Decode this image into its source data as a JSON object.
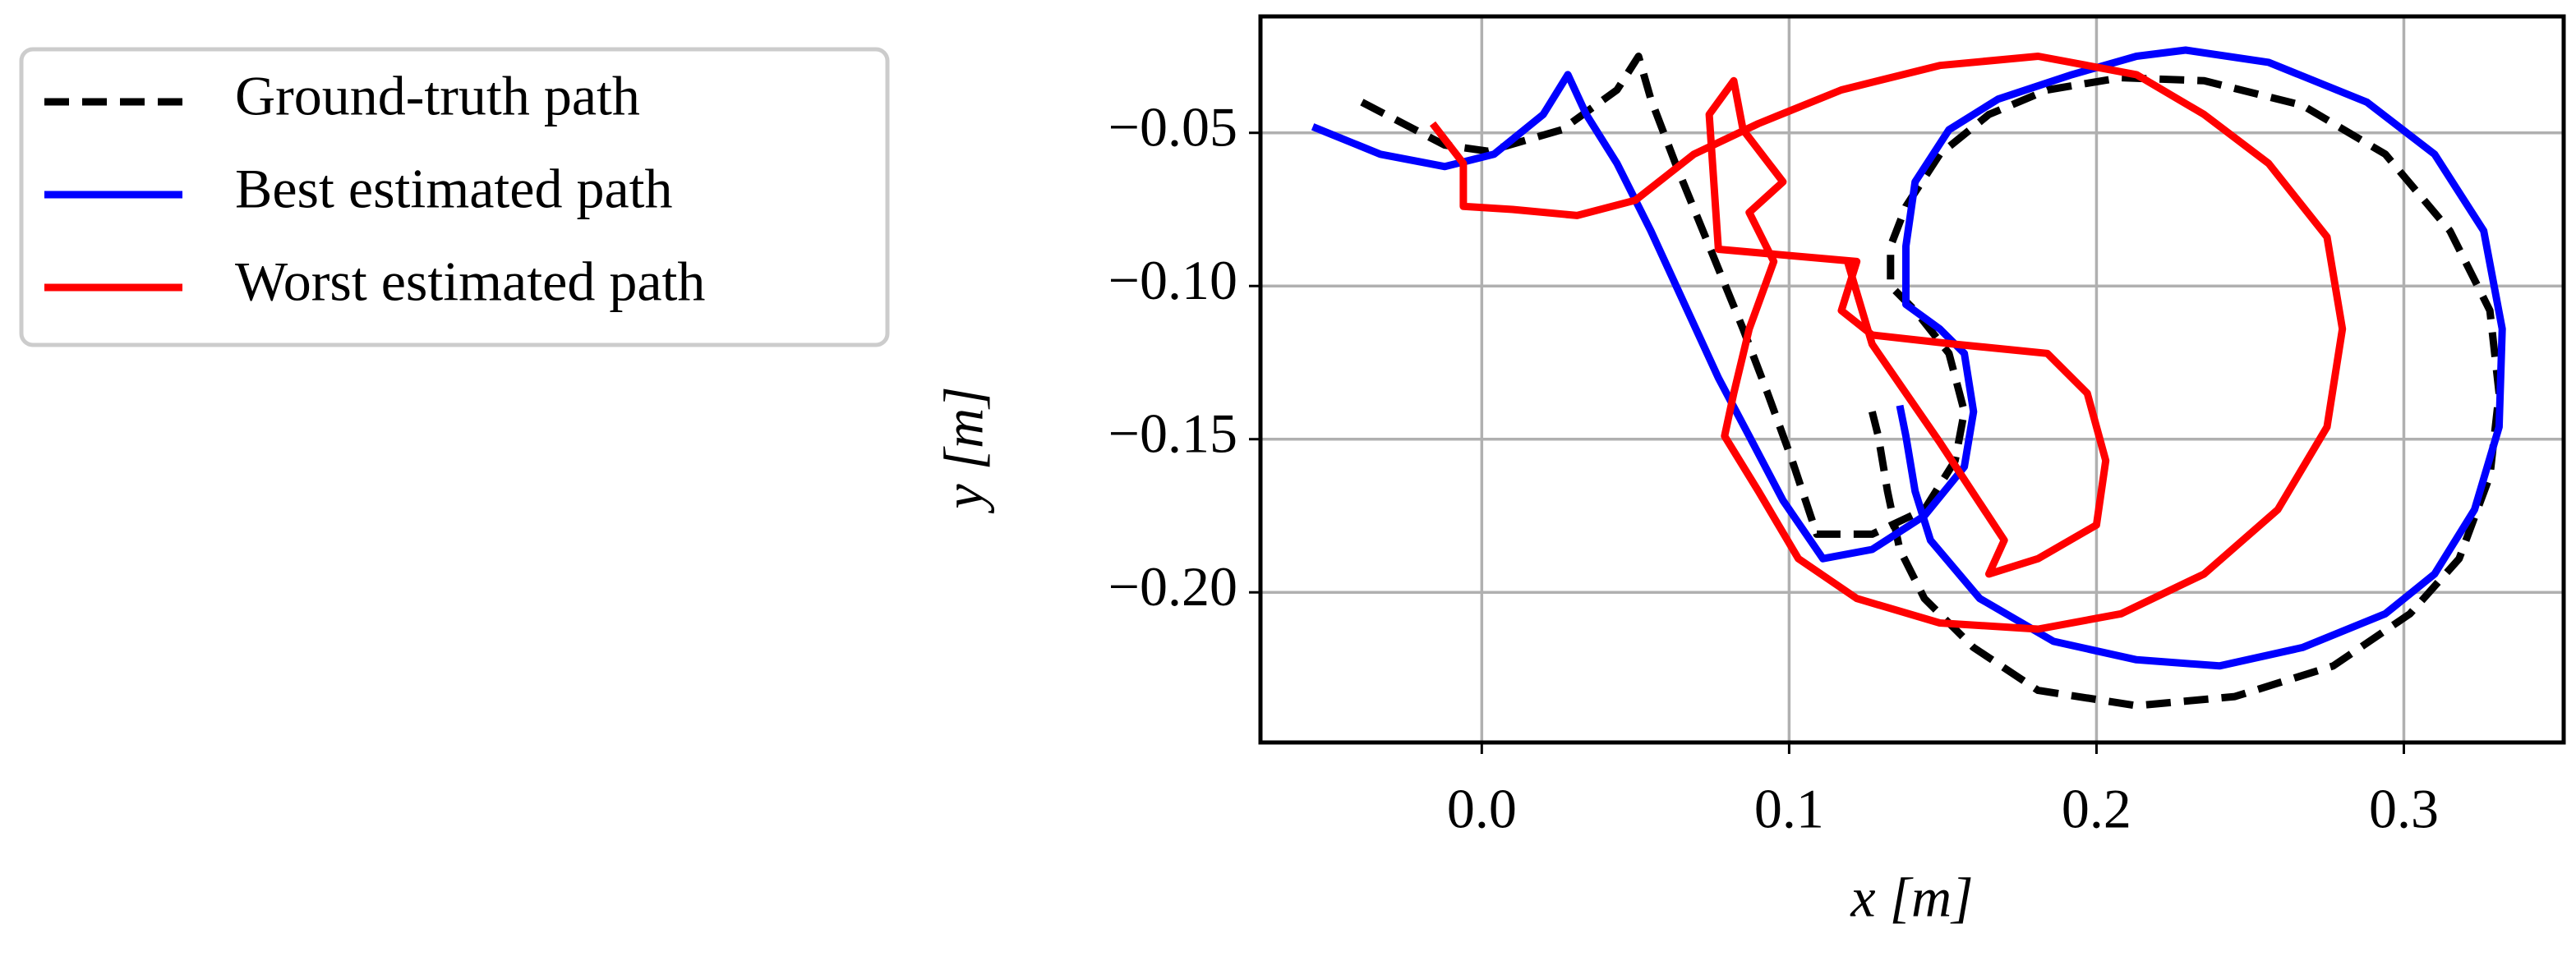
{
  "chart_data": {
    "type": "line",
    "xlabel": "x [m]",
    "ylabel": "y [m]",
    "xlim": [
      -0.072,
      0.352
    ],
    "ylim": [
      -0.249,
      -0.012
    ],
    "xticks": [
      {
        "value": 0,
        "label": "0.0"
      },
      0.1,
      0.2,
      0.3
    ],
    "yticks": [
      {
        "value": -0.05,
        "label": "−0.05"
      },
      {
        "value": -0.1,
        "label": "−0.10"
      },
      {
        "value": -0.15,
        "label": "−0.15"
      },
      {
        "value": -0.2,
        "label": "−0.20"
      }
    ],
    "grid": true,
    "legend": "outside-upper-left",
    "series": [
      {
        "name": "Ground-truth path",
        "color": "#000000",
        "linestyle": "dashed",
        "x": [
          -0.039,
          -0.012,
          0.002,
          0.026,
          0.044,
          0.051,
          0.055,
          0.063,
          0.074,
          0.085,
          0.093,
          0.101,
          0.109,
          0.127,
          0.144,
          0.154,
          0.157,
          0.152,
          0.141,
          0.133,
          0.133,
          0.138,
          0.149,
          0.165,
          0.184,
          0.208,
          0.235,
          0.267,
          0.294,
          0.315,
          0.328,
          0.331,
          0.328,
          0.318,
          0.302,
          0.277,
          0.245,
          0.213,
          0.181,
          0.16,
          0.144,
          0.136,
          0.132,
          0.129,
          0.127
        ],
        "values": [
          -0.04,
          -0.054,
          -0.056,
          -0.049,
          -0.036,
          -0.025,
          -0.039,
          -0.06,
          -0.087,
          -0.114,
          -0.135,
          -0.157,
          -0.181,
          -0.181,
          -0.173,
          -0.157,
          -0.141,
          -0.122,
          -0.108,
          -0.1,
          -0.087,
          -0.074,
          -0.057,
          -0.044,
          -0.036,
          -0.032,
          -0.033,
          -0.041,
          -0.057,
          -0.082,
          -0.108,
          -0.135,
          -0.162,
          -0.189,
          -0.207,
          -0.224,
          -0.234,
          -0.237,
          -0.232,
          -0.218,
          -0.202,
          -0.186,
          -0.167,
          -0.149,
          -0.141
        ]
      },
      {
        "name": "Best estimated path",
        "color": "#0000ff",
        "linestyle": "solid",
        "x": [
          -0.055,
          -0.033,
          -0.012,
          0.004,
          0.02,
          0.028,
          0.034,
          0.044,
          0.055,
          0.066,
          0.077,
          0.087,
          0.098,
          0.111,
          0.127,
          0.144,
          0.157,
          0.16,
          0.157,
          0.149,
          0.138,
          0.138,
          0.141,
          0.152,
          0.168,
          0.192,
          0.213,
          0.229,
          0.256,
          0.288,
          0.31,
          0.326,
          0.332,
          0.331,
          0.323,
          0.31,
          0.294,
          0.267,
          0.24,
          0.213,
          0.186,
          0.162,
          0.146,
          0.141,
          0.138,
          0.136
        ],
        "values": [
          -0.048,
          -0.057,
          -0.061,
          -0.057,
          -0.044,
          -0.031,
          -0.044,
          -0.06,
          -0.082,
          -0.106,
          -0.13,
          -0.149,
          -0.17,
          -0.189,
          -0.186,
          -0.175,
          -0.159,
          -0.141,
          -0.122,
          -0.114,
          -0.106,
          -0.087,
          -0.066,
          -0.049,
          -0.039,
          -0.031,
          -0.025,
          -0.023,
          -0.027,
          -0.04,
          -0.057,
          -0.082,
          -0.114,
          -0.146,
          -0.173,
          -0.194,
          -0.207,
          -0.218,
          -0.224,
          -0.222,
          -0.216,
          -0.202,
          -0.183,
          -0.167,
          -0.149,
          -0.139
        ]
      },
      {
        "name": "Worst estimated path",
        "color": "#ff0000",
        "linestyle": "solid",
        "x": [
          -0.016,
          -0.006,
          -0.006,
          0.01,
          0.031,
          0.05,
          0.069,
          0.09,
          0.117,
          0.149,
          0.181,
          0.213,
          0.235,
          0.256,
          0.275,
          0.28,
          0.275,
          0.259,
          0.235,
          0.208,
          0.181,
          0.149,
          0.122,
          0.103,
          0.09,
          0.079,
          0.082,
          0.087,
          0.095,
          0.087,
          0.098,
          0.085,
          0.082,
          0.074,
          0.077,
          0.122,
          0.117,
          0.127,
          0.154,
          0.184,
          0.197,
          0.203,
          0.2,
          0.181,
          0.165,
          0.17,
          0.149,
          0.127,
          0.119
        ],
        "values": [
          -0.047,
          -0.06,
          -0.074,
          -0.075,
          -0.077,
          -0.072,
          -0.057,
          -0.047,
          -0.036,
          -0.028,
          -0.025,
          -0.031,
          -0.044,
          -0.06,
          -0.084,
          -0.114,
          -0.146,
          -0.173,
          -0.194,
          -0.207,
          -0.212,
          -0.21,
          -0.202,
          -0.189,
          -0.167,
          -0.149,
          -0.135,
          -0.114,
          -0.092,
          -0.076,
          -0.066,
          -0.049,
          -0.033,
          -0.044,
          -0.088,
          -0.092,
          -0.108,
          -0.116,
          -0.119,
          -0.122,
          -0.135,
          -0.157,
          -0.178,
          -0.189,
          -0.194,
          -0.183,
          -0.151,
          -0.119,
          -0.092
        ]
      }
    ]
  }
}
